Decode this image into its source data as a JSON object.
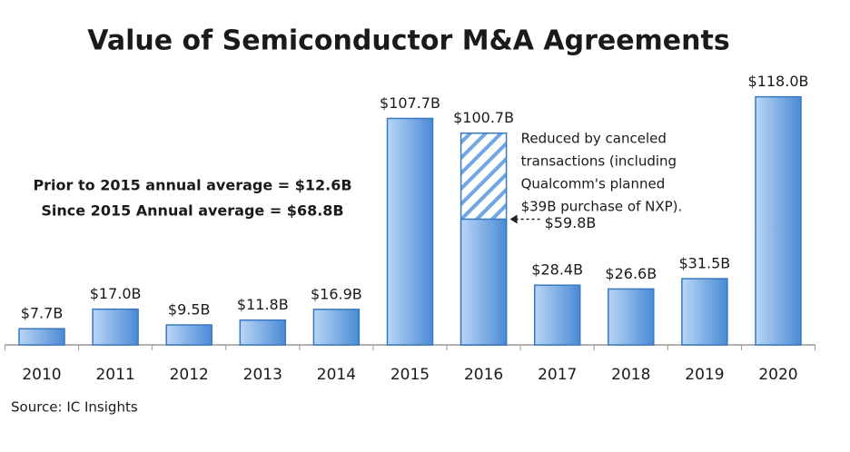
{
  "chart_data": {
    "type": "bar",
    "title": "Value of Semiconductor M&A Agreements",
    "source": "Source: IC Insights",
    "categories": [
      "2010",
      "2011",
      "2012",
      "2013",
      "2014",
      "2015",
      "2016",
      "2017",
      "2018",
      "2019",
      "2020"
    ],
    "values": [
      7.7,
      17.0,
      9.5,
      11.8,
      16.9,
      107.7,
      100.7,
      28.4,
      26.6,
      31.5,
      118.0
    ],
    "value_labels": [
      "$7.7B",
      "$17.0B",
      "$9.5B",
      "$11.8B",
      "$16.9B",
      "$107.7B",
      "$100.7B",
      "$28.4B",
      "$26.6B",
      "$31.5B",
      "$118.0B"
    ],
    "reduced_values": [
      null,
      null,
      null,
      null,
      null,
      null,
      59.8,
      null,
      null,
      null,
      null
    ],
    "reduced_labels": [
      null,
      null,
      null,
      null,
      null,
      null,
      "$59.8B",
      null,
      null,
      null,
      null
    ],
    "reduced_note": [
      "Reduced by canceled",
      "transactions (including",
      "Qualcomm's planned",
      "$39B purchase of NXP)."
    ],
    "annotations": [
      "Prior to 2015 annual average = $12.6B",
      "Since 2015 Annual average = $68.8B"
    ],
    "color": "#5b9be0",
    "ylim": [
      0,
      120
    ]
  }
}
